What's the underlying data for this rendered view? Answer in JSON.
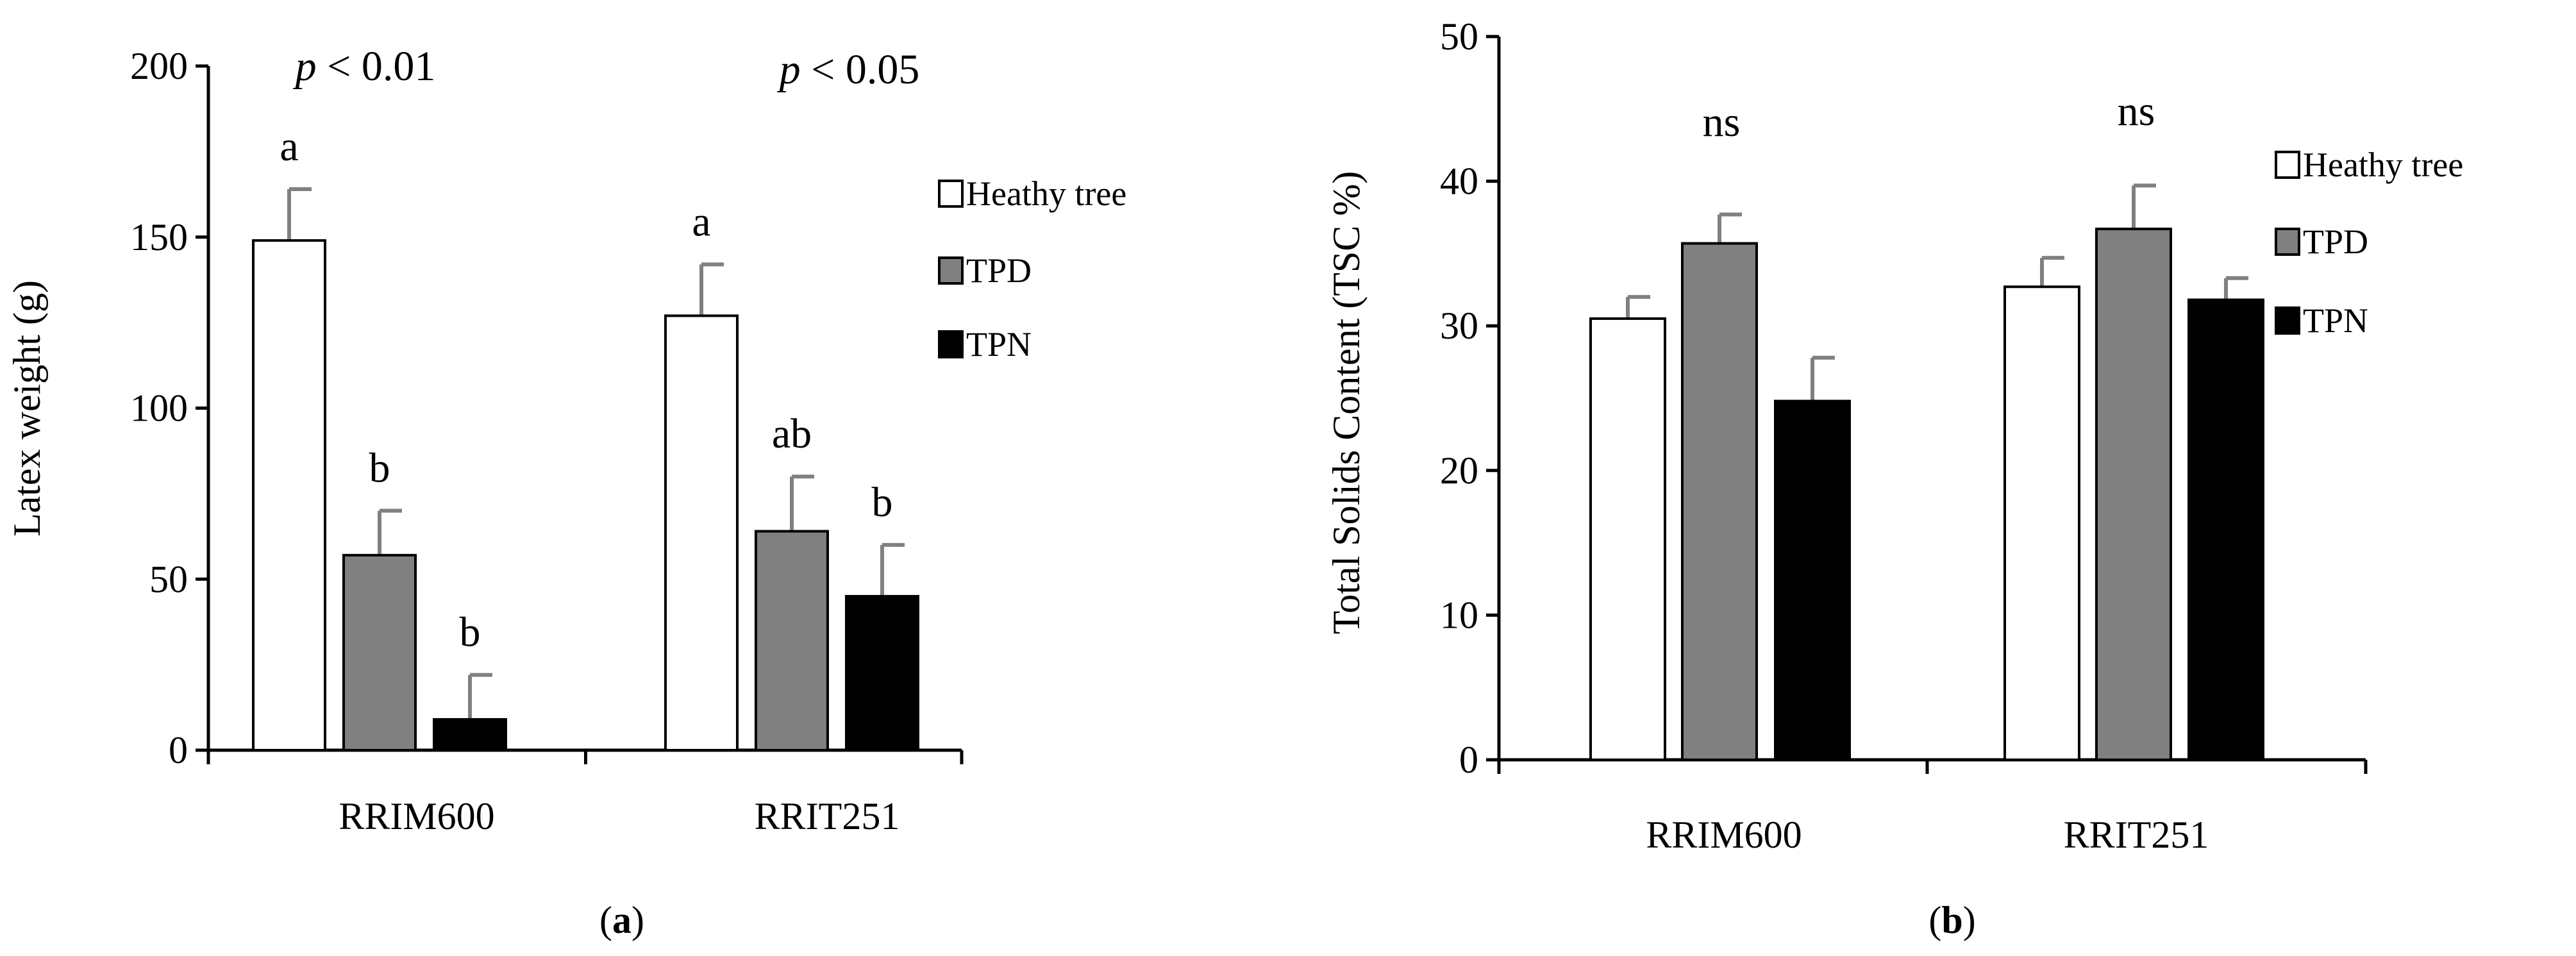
{
  "chart_data": [
    {
      "id": "a",
      "type": "bar",
      "panel_label": {
        "open": "(",
        "letter": "a",
        "close": ")"
      },
      "ylabel": "Latex weight (g)",
      "xlabel": "",
      "ylim": [
        0,
        200
      ],
      "yticks": [
        0,
        50,
        100,
        150,
        200
      ],
      "categories": [
        "RRIM600",
        "RRIT251"
      ],
      "series": [
        {
          "name": "Heathy tree",
          "values": [
            149,
            127
          ],
          "errors": [
            15,
            15
          ],
          "letters": [
            "a",
            "a"
          ]
        },
        {
          "name": "TPD",
          "values": [
            57,
            64
          ],
          "errors": [
            13,
            16
          ],
          "letters": [
            "b",
            "ab"
          ]
        },
        {
          "name": "TPN",
          "values": [
            9,
            45
          ],
          "errors": [
            13,
            15
          ],
          "letters": [
            "b",
            "b"
          ]
        }
      ],
      "significance": [
        {
          "p": "p",
          "rest": " < 0.01"
        },
        {
          "p": "p",
          "rest": " < 0.05"
        }
      ],
      "legend_position": "right",
      "grid": false
    },
    {
      "id": "b",
      "type": "bar",
      "panel_label": {
        "open": "(",
        "letter": "b",
        "close": ")"
      },
      "ylabel": "Total Solids Content (TSC %)",
      "xlabel": "",
      "ylim": [
        0,
        50
      ],
      "yticks": [
        0,
        10,
        20,
        30,
        40,
        50
      ],
      "categories": [
        "RRIM600",
        "RRIT251"
      ],
      "series": [
        {
          "name": "Heathy tree",
          "values": [
            30.5,
            32.7
          ],
          "errors": [
            1.5,
            2.0
          ],
          "letters": [
            "",
            ""
          ]
        },
        {
          "name": "TPD",
          "values": [
            35.7,
            36.7
          ],
          "errors": [
            2.0,
            3.0
          ],
          "letters": [
            "",
            ""
          ]
        },
        {
          "name": "TPN",
          "values": [
            24.8,
            31.8
          ],
          "errors": [
            3.0,
            1.5
          ],
          "letters": [
            "",
            ""
          ]
        }
      ],
      "significance": [
        {
          "p": "",
          "rest": "ns"
        },
        {
          "p": "",
          "rest": "ns"
        }
      ],
      "legend_position": "right",
      "grid": false
    }
  ],
  "colors": {
    "series": [
      "#ffffff",
      "#808080",
      "#000000"
    ],
    "error_bar": "#808080",
    "axis": "#000000"
  }
}
